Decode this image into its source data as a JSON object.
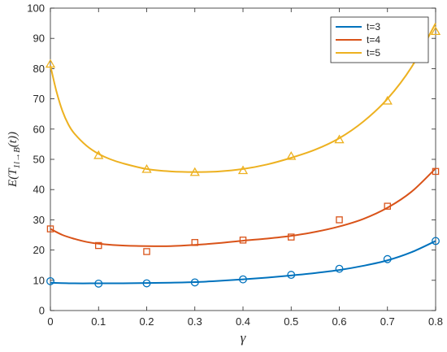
{
  "chart_data": {
    "type": "line",
    "title": "",
    "xlabel": "γ",
    "ylabel": {
      "main": "E(T",
      "sub": "1l→B",
      "arg": "(t))"
    },
    "xlim": [
      0,
      0.8
    ],
    "ylim": [
      0,
      100
    ],
    "x_ticks": [
      "0",
      "0.1",
      "0.2",
      "0.3",
      "0.4",
      "0.5",
      "0.6",
      "0.7",
      "0.8"
    ],
    "y_ticks": [
      "0",
      "10",
      "20",
      "30",
      "40",
      "50",
      "60",
      "70",
      "80",
      "90",
      "100"
    ],
    "grid": false,
    "legend_position": "top-right",
    "series": [
      {
        "name": "t=3",
        "color": "#0072BD",
        "marker": "circle",
        "markers": {
          "x": [
            0,
            0.1,
            0.2,
            0.3,
            0.4,
            0.5,
            0.6,
            0.7,
            0.8
          ],
          "y": [
            9.7,
            8.9,
            9.0,
            9.3,
            10.3,
            11.8,
            13.8,
            17.0,
            23.0
          ]
        },
        "curve": {
          "x": [
            0,
            0.05,
            0.1,
            0.15,
            0.2,
            0.25,
            0.3,
            0.35,
            0.4,
            0.45,
            0.5,
            0.55,
            0.6,
            0.65,
            0.7,
            0.75,
            0.8
          ],
          "y": [
            9.2,
            9.0,
            9.0,
            9.0,
            9.1,
            9.2,
            9.4,
            9.8,
            10.3,
            10.9,
            11.6,
            12.4,
            13.4,
            14.8,
            16.6,
            19.3,
            23.0
          ]
        }
      },
      {
        "name": "t=4",
        "color": "#D95319",
        "marker": "square",
        "markers": {
          "x": [
            0,
            0.1,
            0.2,
            0.3,
            0.4,
            0.5,
            0.6,
            0.7,
            0.8
          ],
          "y": [
            27.0,
            21.5,
            19.5,
            22.5,
            23.3,
            24.3,
            30.0,
            34.5,
            46.0
          ]
        },
        "curve": {
          "x": [
            0,
            0.025,
            0.05,
            0.075,
            0.1,
            0.15,
            0.2,
            0.25,
            0.3,
            0.35,
            0.4,
            0.45,
            0.5,
            0.55,
            0.6,
            0.65,
            0.7,
            0.75,
            0.8
          ],
          "y": [
            27.0,
            25.0,
            23.7,
            22.7,
            22.1,
            21.5,
            21.3,
            21.3,
            21.7,
            22.3,
            23.1,
            23.8,
            24.7,
            26.0,
            27.8,
            30.3,
            34.0,
            39.3,
            47.0
          ]
        }
      },
      {
        "name": "t=5",
        "color": "#EDB120",
        "marker": "triangle",
        "markers": {
          "x": [
            0,
            0.1,
            0.2,
            0.3,
            0.4,
            0.5,
            0.6,
            0.7,
            0.8
          ],
          "y": [
            81.5,
            51.3,
            46.7,
            45.7,
            46.3,
            51.0,
            56.5,
            69.3,
            92.3
          ]
        },
        "curve": {
          "x": [
            0,
            0.0125,
            0.025,
            0.0375,
            0.05,
            0.075,
            0.1,
            0.125,
            0.15,
            0.2,
            0.25,
            0.3,
            0.35,
            0.4,
            0.45,
            0.5,
            0.55,
            0.6,
            0.65,
            0.7,
            0.75,
            0.8
          ],
          "y": [
            81.0,
            72.5,
            66.0,
            61.5,
            58.5,
            54.5,
            51.8,
            50.0,
            48.7,
            46.8,
            46.0,
            45.8,
            46.0,
            46.8,
            48.3,
            50.5,
            53.2,
            57.0,
            62.5,
            70.0,
            80.5,
            95.0
          ]
        }
      }
    ]
  }
}
